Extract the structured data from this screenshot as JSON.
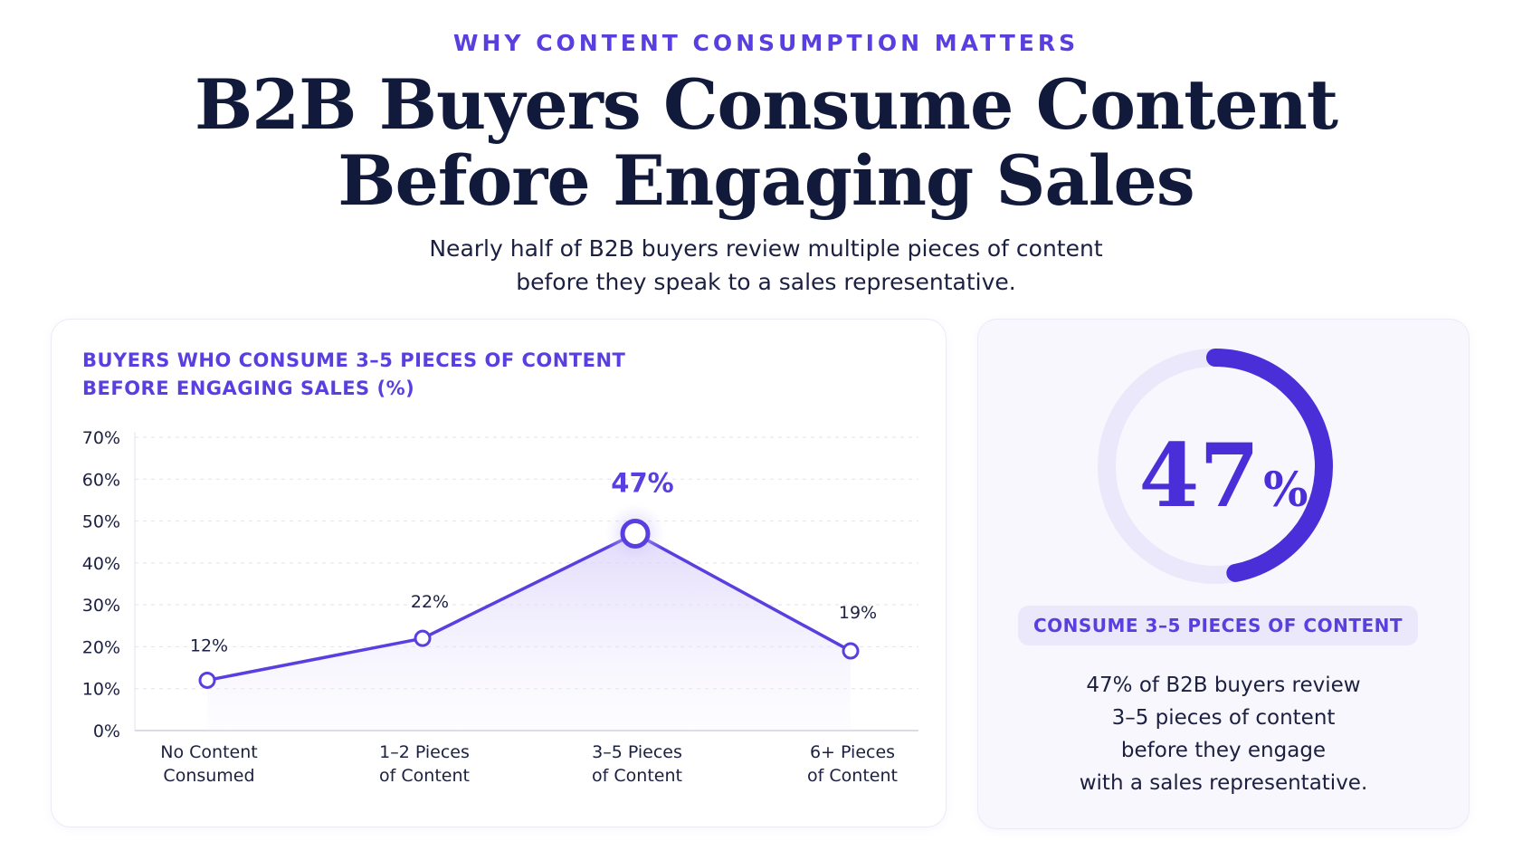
{
  "header": {
    "eyebrow": "WHY CONTENT CONSUMPTION MATTERS",
    "title_line1": "B2B Buyers Consume Content",
    "title_line2": "Before Engaging Sales",
    "subtitle_line1": "Nearly half of B2B buyers review multiple pieces of content",
    "subtitle_line2": "before they speak to a sales representative."
  },
  "chart_data": {
    "type": "line",
    "title_line1": "BUYERS WHO CONSUME 3–5 PIECES OF CONTENT",
    "title_line2": "BEFORE ENGAGING SALES (%)",
    "categories": [
      [
        "No Content",
        "Consumed"
      ],
      [
        "1–2 Pieces",
        "of Content"
      ],
      [
        "3–5 Pieces",
        "of Content"
      ],
      [
        "6+ Pieces",
        "of Content"
      ]
    ],
    "values": [
      12,
      22,
      47,
      19
    ],
    "data_labels": [
      "12%",
      "22%",
      "47%",
      "19%"
    ],
    "highlight_index": 2,
    "ylim": [
      0,
      70
    ],
    "yticks": [
      "0%",
      "10%",
      "20%",
      "30%",
      "40%",
      "50%",
      "60%",
      "70%"
    ],
    "grid": true,
    "colors": {
      "line": "#5a3fe0",
      "fill": "#e9e4fc",
      "grid": "#e3e2ea"
    }
  },
  "stat": {
    "value": 47,
    "number": "47",
    "unit": "%",
    "pill": "CONSUME 3–5 PIECES OF CONTENT",
    "desc_line1": "47% of B2B buyers review",
    "desc_line2": "3–5 pieces of content",
    "desc_line3": "before they engage",
    "desc_line4": "with a sales representative.",
    "colors": {
      "ring": "#4a2fd8",
      "track": "#ebe8fb"
    }
  }
}
